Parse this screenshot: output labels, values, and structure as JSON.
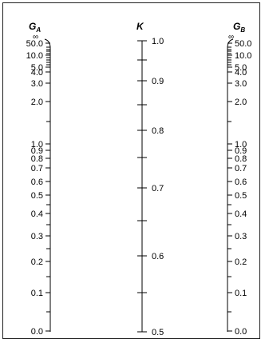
{
  "diagram": {
    "scales": [
      {
        "id": "ga",
        "title": "G",
        "subscript": "A",
        "infinity_symbol": "∞",
        "labels": [
          "50.0",
          "10.0",
          "5.0",
          "4.0",
          "3.0",
          "2.0",
          "1.0",
          "0.9",
          "0.8",
          "0.7",
          "0.6",
          "0.5",
          "0.4",
          "0.3",
          "0.2",
          "0.1",
          "0.0"
        ]
      },
      {
        "id": "k",
        "title": "K",
        "subscript": "",
        "labels": [
          "1.0",
          "0.9",
          "0.8",
          "0.7",
          "0.6",
          "0.5"
        ]
      },
      {
        "id": "gb",
        "title": "G",
        "subscript": "B",
        "infinity_symbol": "∞",
        "labels": [
          "50.0",
          "10.0",
          "5.0",
          "4.0",
          "3.0",
          "2.0",
          "1.0",
          "0.9",
          "0.8",
          "0.7",
          "0.6",
          "0.5",
          "0.4",
          "0.3",
          "0.2",
          "0.1",
          "0.0"
        ]
      }
    ]
  }
}
